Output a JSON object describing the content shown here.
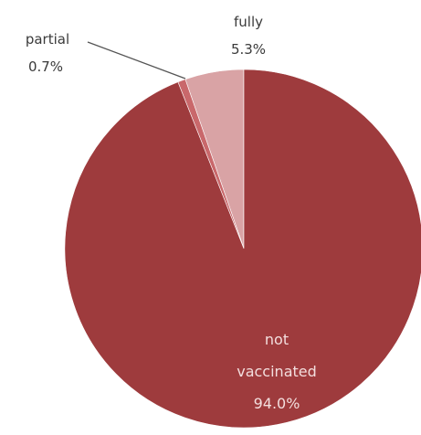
{
  "chart_data": {
    "type": "pie",
    "slices": [
      {
        "label": "fully",
        "value": 5.3,
        "value_label": "5.3%",
        "color": "#d9a3a5"
      },
      {
        "label": "partial",
        "value": 0.7,
        "value_label": "0.7%",
        "color": "#c9686b"
      },
      {
        "label": "not vaccinated",
        "label_lines": [
          "not",
          "vaccinated"
        ],
        "value": 94.0,
        "value_label": "94.0%",
        "color": "#9e3b3d"
      }
    ],
    "start": "12 o'clock",
    "direction": "counter-clockwise",
    "legend": "none",
    "labels": "on-chart"
  }
}
